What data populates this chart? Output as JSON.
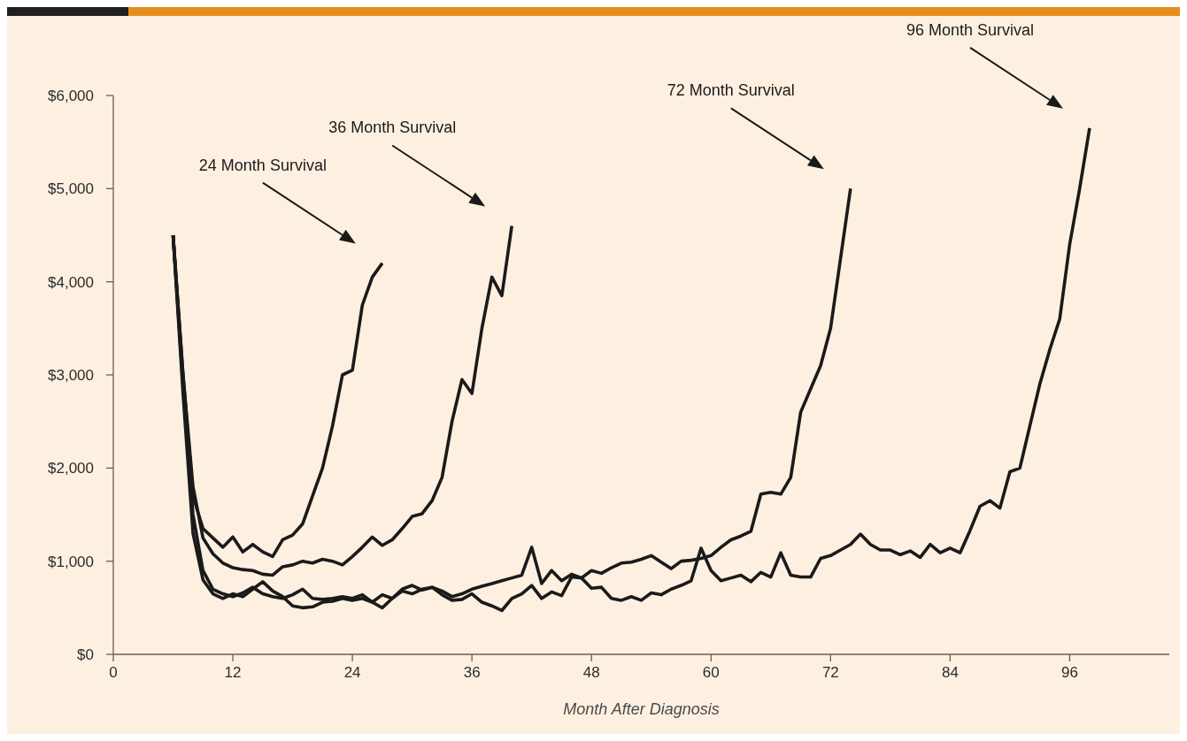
{
  "chart_data": {
    "type": "line",
    "xlabel": "Month After Diagnosis",
    "xlim": [
      0,
      106
    ],
    "ylim": [
      0,
      6000
    ],
    "xticks": [
      0,
      12,
      24,
      36,
      48,
      60,
      72,
      84,
      96
    ],
    "yticks": [
      {
        "value": 0,
        "label": "$0"
      },
      {
        "value": 1000,
        "label": "$1,000"
      },
      {
        "value": 2000,
        "label": "$2,000"
      },
      {
        "value": 3000,
        "label": "$3,000"
      },
      {
        "value": 4000,
        "label": "$4,000"
      },
      {
        "value": 5000,
        "label": "$5,000"
      },
      {
        "value": 6000,
        "label": "$6,000"
      }
    ],
    "annotations": [
      "24 Month Survival",
      "36 Month Survival",
      "72 Month Survival",
      "96 Month Survival"
    ],
    "series": [
      {
        "color": "#1a1a1a",
        "x": [
          6,
          7,
          8,
          9,
          10,
          11,
          12,
          13,
          14,
          15,
          16,
          17,
          18,
          19,
          20,
          21,
          22,
          23,
          24,
          25,
          26,
          27
        ],
        "values": [
          4500,
          3000,
          1700,
          1350,
          1250,
          1150,
          1260,
          1100,
          1180,
          1100,
          1050,
          1230,
          1280,
          1400,
          1700,
          2000,
          2450,
          3000,
          3050,
          3750,
          4050,
          4200
        ]
      },
      {
        "color": "#1a1a1a",
        "x": [
          6,
          7,
          8,
          9,
          10,
          11,
          12,
          13,
          14,
          15,
          16,
          17,
          18,
          19,
          20,
          21,
          22,
          23,
          24,
          25,
          26,
          27,
          28,
          29,
          30,
          31,
          32,
          33,
          34,
          35,
          36,
          37,
          38,
          39,
          40
        ],
        "values": [
          4500,
          3000,
          1800,
          1250,
          1080,
          980,
          930,
          910,
          900,
          860,
          850,
          940,
          960,
          1000,
          980,
          1020,
          1000,
          960,
          1050,
          1150,
          1260,
          1170,
          1230,
          1350,
          1480,
          1510,
          1650,
          1900,
          2500,
          2950,
          2800,
          3500,
          4050,
          3850,
          4600
        ]
      },
      {
        "color": "#1a1a1a",
        "x": [
          6,
          7,
          8,
          9,
          10,
          11,
          12,
          13,
          14,
          15,
          16,
          17,
          18,
          19,
          20,
          21,
          22,
          23,
          24,
          25,
          26,
          27,
          28,
          29,
          30,
          31,
          32,
          33,
          34,
          35,
          36,
          37,
          38,
          39,
          40,
          41,
          42,
          43,
          44,
          45,
          46,
          47,
          48,
          49,
          50,
          51,
          52,
          53,
          54,
          55,
          56,
          57,
          58,
          59,
          60,
          61,
          62,
          63,
          64,
          65,
          66,
          67,
          68,
          69,
          70,
          71,
          72,
          73,
          74
        ],
        "values": [
          4500,
          2900,
          1500,
          900,
          700,
          650,
          620,
          660,
          720,
          650,
          620,
          600,
          640,
          700,
          600,
          590,
          600,
          620,
          600,
          640,
          560,
          640,
          600,
          700,
          740,
          690,
          720,
          680,
          620,
          650,
          700,
          730,
          760,
          790,
          820,
          850,
          1150,
          760,
          900,
          790,
          860,
          820,
          900,
          870,
          930,
          980,
          990,
          1020,
          1060,
          990,
          920,
          1000,
          1010,
          1030,
          1060,
          1150,
          1230,
          1270,
          1320,
          1720,
          1740,
          1720,
          1900,
          2600,
          2850,
          3100,
          3500,
          4250,
          5000
        ]
      },
      {
        "color": "#1a1a1a",
        "x": [
          6,
          7,
          8,
          9,
          10,
          11,
          12,
          13,
          14,
          15,
          16,
          17,
          18,
          19,
          20,
          21,
          22,
          23,
          24,
          25,
          26,
          27,
          28,
          29,
          30,
          31,
          32,
          33,
          34,
          35,
          36,
          37,
          38,
          39,
          40,
          41,
          42,
          43,
          44,
          45,
          46,
          47,
          48,
          49,
          50,
          51,
          52,
          53,
          54,
          55,
          56,
          57,
          58,
          59,
          60,
          61,
          62,
          63,
          64,
          65,
          66,
          67,
          68,
          69,
          70,
          71,
          72,
          73,
          74,
          75,
          76,
          77,
          78,
          79,
          80,
          81,
          82,
          83,
          84,
          85,
          86,
          87,
          88,
          89,
          90,
          91,
          92,
          93,
          94,
          95,
          96,
          97,
          98
        ],
        "values": [
          4500,
          2800,
          1300,
          800,
          650,
          600,
          650,
          620,
          700,
          780,
          680,
          620,
          520,
          500,
          510,
          560,
          570,
          600,
          580,
          600,
          560,
          500,
          600,
          680,
          650,
          700,
          720,
          640,
          580,
          590,
          650,
          560,
          520,
          470,
          600,
          650,
          740,
          600,
          670,
          630,
          830,
          820,
          710,
          720,
          600,
          580,
          620,
          580,
          660,
          640,
          700,
          740,
          790,
          1140,
          900,
          790,
          820,
          850,
          780,
          880,
          830,
          1090,
          850,
          830,
          830,
          1030,
          1060,
          1120,
          1180,
          1290,
          1180,
          1120,
          1120,
          1070,
          1110,
          1040,
          1180,
          1090,
          1140,
          1090,
          1330,
          1590,
          1650,
          1570,
          1960,
          2000,
          2450,
          2900,
          3270,
          3600,
          4400,
          5000,
          5650
        ]
      }
    ]
  }
}
